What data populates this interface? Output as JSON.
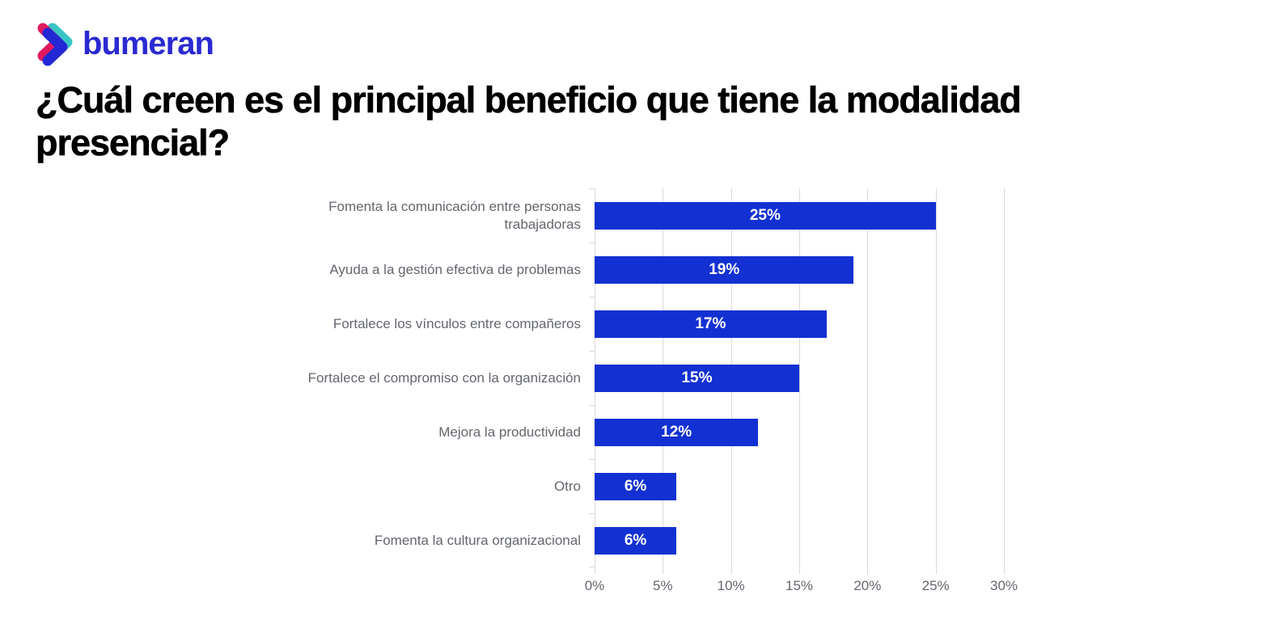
{
  "logo": {
    "text": "bumeran",
    "colors": {
      "text_blue": "#2a2ad2",
      "chevron_blue": "#2328d4",
      "chevron_teal": "#38c5c6",
      "chevron_pink": "#e2195e"
    }
  },
  "title": {
    "line1": "¿Cuál creen es el principal beneficio que tiene la modalidad",
    "line2": "presencial?",
    "full": "¿Cuál creen es el principal beneficio que tiene la modalidad presencial?"
  },
  "chart_data": {
    "type": "bar",
    "orientation": "horizontal",
    "title": "¿Cuál creen es el principal beneficio que tiene la modalidad presencial?",
    "categories": [
      "Fomenta la comunicación entre personas trabajadoras",
      "Ayuda a la gestión efectiva de problemas",
      "Fortalece los vínculos entre compañeros",
      "Fortalece el compromiso con la organización",
      "Mejora la productividad",
      "Otro",
      "Fomenta la cultura organizacional"
    ],
    "values": [
      25,
      19,
      17,
      15,
      12,
      6,
      6
    ],
    "value_labels": [
      "25%",
      "19%",
      "17%",
      "15%",
      "12%",
      "6%",
      "6%"
    ],
    "x_ticks": [
      "0%",
      "5%",
      "10%",
      "15%",
      "20%",
      "25%",
      "30%"
    ],
    "xlim": [
      0,
      30
    ],
    "xlabel": "",
    "ylabel": "",
    "grid": true,
    "legend": false,
    "bar_color": "#1331d2",
    "gridline_color": "#d9d9d9",
    "label_color": "#63676d",
    "value_label_color": "#ffffff"
  }
}
